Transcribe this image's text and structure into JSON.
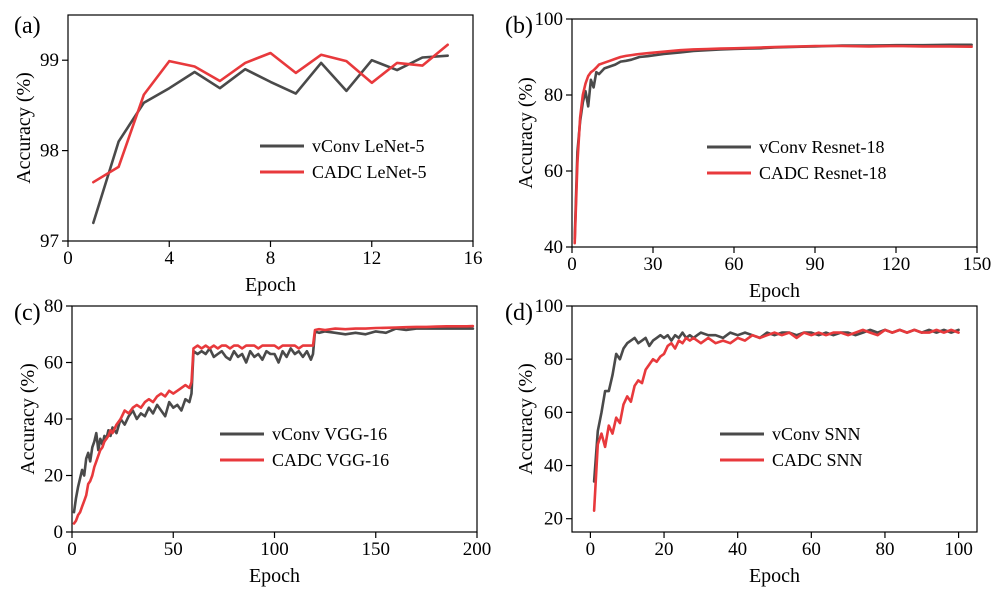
{
  "colors": {
    "vconv": "#4a4a4a",
    "cadc": "#e8393c"
  },
  "chart_data": [
    {
      "type": "line",
      "panel_label": "(a)",
      "xlabel": "Epoch",
      "ylabel": "Accuracy (%)",
      "xlim": [
        0,
        16
      ],
      "ylim": [
        97,
        99.5
      ],
      "xticks": [
        0,
        4,
        8,
        12,
        16
      ],
      "yticks": [
        97,
        98,
        99
      ],
      "legend_position": "center-right",
      "series": [
        {
          "name": "vConv LeNet-5",
          "color_key": "vconv",
          "x": [
            1,
            2,
            3,
            4,
            5,
            6,
            7,
            8,
            9,
            10,
            11,
            12,
            13,
            14,
            15
          ],
          "y": [
            97.2,
            98.1,
            98.53,
            98.69,
            98.87,
            98.69,
            98.9,
            98.76,
            98.63,
            98.97,
            98.66,
            99.0,
            98.89,
            99.03,
            99.05
          ]
        },
        {
          "name": "CADC LeNet-5",
          "color_key": "cadc",
          "x": [
            1,
            2,
            3,
            4,
            5,
            6,
            7,
            8,
            9,
            10,
            11,
            12,
            13,
            14,
            15
          ],
          "y": [
            97.65,
            97.82,
            98.62,
            98.99,
            98.93,
            98.77,
            98.97,
            99.08,
            98.86,
            99.06,
            98.99,
            98.75,
            98.97,
            98.94,
            99.17
          ]
        }
      ]
    },
    {
      "type": "line",
      "panel_label": "(b)",
      "xlabel": "Epoch",
      "ylabel": "Accuracy (%)",
      "xlim": [
        0,
        150
      ],
      "ylim": [
        40,
        100
      ],
      "xticks": [
        0,
        30,
        60,
        90,
        120,
        150
      ],
      "yticks": [
        40,
        60,
        80,
        100
      ],
      "legend_position": "center-right",
      "series": [
        {
          "name": "vConv Resnet-18",
          "color_key": "vconv",
          "x": [
            1,
            2,
            3,
            4,
            5,
            6,
            7,
            8,
            9,
            10,
            12,
            14,
            16,
            18,
            20,
            22,
            25,
            28,
            31,
            34,
            37,
            40,
            45,
            50,
            55,
            60,
            65,
            70,
            75,
            80,
            85,
            90,
            95,
            100,
            110,
            120,
            130,
            140,
            148
          ],
          "y": [
            42,
            65,
            73,
            78,
            81,
            77,
            84,
            82,
            86,
            85.5,
            87,
            87.5,
            88,
            88.8,
            89,
            89.3,
            90,
            90.2,
            90.5,
            90.8,
            91,
            91.2,
            91.6,
            91.8,
            92,
            92.1,
            92.2,
            92.3,
            92.5,
            92.6,
            92.7,
            92.8,
            92.9,
            93,
            93,
            93.1,
            93.1,
            93.2,
            93.2
          ]
        },
        {
          "name": "CADC Resnet-18",
          "color_key": "cadc",
          "x": [
            1,
            2,
            3,
            4,
            5,
            6,
            7,
            8,
            9,
            10,
            12,
            14,
            16,
            18,
            20,
            22,
            25,
            28,
            31,
            34,
            37,
            40,
            45,
            50,
            55,
            60,
            65,
            70,
            75,
            80,
            85,
            90,
            95,
            100,
            110,
            120,
            130,
            140,
            148
          ],
          "y": [
            41,
            62,
            74,
            80,
            83,
            85,
            86,
            86.5,
            87.2,
            88,
            88.5,
            89,
            89.5,
            90,
            90.3,
            90.5,
            90.8,
            91,
            91.2,
            91.4,
            91.6,
            91.8,
            92,
            92.1,
            92.2,
            92.3,
            92.4,
            92.5,
            92.6,
            92.7,
            92.8,
            92.9,
            92.9,
            92.9,
            92.8,
            92.9,
            92.8,
            92.8,
            92.7
          ]
        }
      ]
    },
    {
      "type": "line",
      "panel_label": "(c)",
      "xlabel": "Epoch",
      "ylabel": "Accuracy (%)",
      "xlim": [
        0,
        200
      ],
      "ylim": [
        0,
        80
      ],
      "xticks": [
        0,
        50,
        100,
        150,
        200
      ],
      "yticks": [
        0,
        20,
        40,
        60,
        80
      ],
      "legend_position": "bottom-right",
      "series": [
        {
          "name": "vConv VGG-16",
          "color_key": "vconv",
          "x": [
            1,
            2,
            3,
            4,
            5,
            6,
            7,
            8,
            9,
            10,
            11,
            12,
            13,
            14,
            15,
            16,
            17,
            18,
            19,
            20,
            22,
            24,
            26,
            28,
            30,
            32,
            34,
            36,
            38,
            40,
            42,
            44,
            46,
            48,
            50,
            52,
            54,
            56,
            58,
            59,
            60,
            62,
            64,
            66,
            68,
            70,
            72,
            74,
            76,
            78,
            80,
            82,
            84,
            86,
            88,
            90,
            92,
            94,
            96,
            98,
            100,
            102,
            104,
            106,
            108,
            110,
            112,
            114,
            116,
            118,
            119,
            120,
            122,
            125,
            130,
            135,
            140,
            145,
            150,
            155,
            160,
            165,
            170,
            175,
            180,
            185,
            190,
            195,
            198
          ],
          "y": [
            7,
            12,
            16,
            19,
            22,
            20,
            26,
            28,
            25,
            30,
            32,
            35,
            29,
            33,
            31,
            34,
            33,
            36,
            34,
            37,
            35,
            40,
            38,
            41,
            43,
            40,
            42,
            41,
            44,
            42,
            45,
            43,
            41,
            46,
            44,
            45,
            43,
            47,
            46,
            49,
            64,
            63,
            64,
            63,
            65,
            62,
            63,
            64,
            62,
            61,
            64,
            62,
            63,
            60,
            64,
            62,
            63,
            61,
            64,
            63,
            63,
            60,
            64,
            62,
            65,
            63,
            64,
            62,
            64,
            61,
            63,
            71,
            70.5,
            71,
            70.5,
            70,
            70.5,
            70,
            71,
            70.5,
            72,
            71.5,
            72,
            72,
            72,
            72,
            72,
            72,
            72
          ]
        },
        {
          "name": "CADC VGG-16",
          "color_key": "cadc",
          "x": [
            1,
            2,
            3,
            4,
            5,
            6,
            7,
            8,
            9,
            10,
            11,
            12,
            13,
            14,
            15,
            16,
            17,
            18,
            19,
            20,
            22,
            24,
            26,
            28,
            30,
            32,
            34,
            36,
            38,
            40,
            42,
            44,
            46,
            48,
            50,
            52,
            54,
            56,
            58,
            59,
            60,
            62,
            64,
            66,
            68,
            70,
            72,
            74,
            76,
            78,
            80,
            82,
            84,
            86,
            88,
            90,
            92,
            94,
            96,
            98,
            100,
            102,
            104,
            106,
            108,
            110,
            112,
            114,
            116,
            118,
            119,
            120,
            122,
            125,
            130,
            135,
            140,
            145,
            150,
            155,
            160,
            165,
            170,
            175,
            180,
            185,
            190,
            195,
            198
          ],
          "y": [
            3,
            4,
            6,
            7,
            9,
            11,
            13,
            17,
            18,
            20,
            23,
            25,
            27,
            29,
            30,
            32,
            33,
            34,
            36,
            35,
            38,
            40,
            43,
            42,
            44,
            45,
            44,
            46,
            47,
            46,
            48,
            49,
            48,
            50,
            49,
            50,
            51,
            52,
            51,
            53,
            65,
            66,
            65,
            66,
            65,
            66,
            65,
            66,
            66,
            65,
            66,
            66,
            65,
            66,
            66,
            66,
            65,
            66,
            66,
            66,
            66,
            65,
            66,
            66,
            66,
            66,
            65,
            66,
            66,
            66,
            66,
            71.5,
            71.8,
            71.5,
            72,
            71.8,
            72,
            72,
            72.2,
            72.3,
            72.4,
            72.5,
            72.6,
            72.6,
            72.7,
            72.8,
            72.8,
            72.8,
            72.9
          ]
        }
      ]
    },
    {
      "type": "line",
      "panel_label": "(d)",
      "xlabel": "Epoch",
      "ylabel": "Accuracy (%)",
      "xlim": [
        -5,
        105
      ],
      "ylim": [
        15,
        100
      ],
      "xticks": [
        0,
        20,
        40,
        60,
        80,
        100
      ],
      "yticks": [
        20,
        40,
        60,
        80,
        100
      ],
      "legend_position": "bottom-right",
      "series": [
        {
          "name": "vConv SNN",
          "color_key": "vconv",
          "x": [
            1,
            2,
            3,
            4,
            5,
            6,
            7,
            8,
            9,
            10,
            11,
            12,
            13,
            14,
            15,
            16,
            17,
            18,
            19,
            20,
            21,
            22,
            23,
            24,
            25,
            26,
            27,
            28,
            29,
            30,
            32,
            34,
            36,
            38,
            40,
            42,
            44,
            46,
            48,
            50,
            52,
            54,
            56,
            58,
            60,
            62,
            64,
            66,
            68,
            70,
            72,
            74,
            76,
            78,
            80,
            82,
            84,
            86,
            88,
            90,
            92,
            94,
            96,
            98,
            100
          ],
          "y": [
            34,
            53,
            60,
            68,
            68,
            74,
            82,
            80,
            84,
            86,
            87,
            88,
            86,
            87,
            88,
            85,
            87,
            88,
            89,
            88,
            89,
            87,
            89,
            88,
            90,
            88,
            89,
            88,
            89,
            90,
            89,
            89,
            88,
            90,
            89,
            90,
            89,
            88,
            90,
            89,
            90,
            90,
            89,
            90,
            90,
            89,
            90,
            89,
            90,
            90,
            89,
            90,
            91,
            90,
            91,
            90,
            91,
            90,
            91,
            90,
            91,
            90,
            91,
            90,
            91
          ]
        },
        {
          "name": "CADC SNN",
          "color_key": "cadc",
          "x": [
            1,
            2,
            3,
            4,
            5,
            6,
            7,
            8,
            9,
            10,
            11,
            12,
            13,
            14,
            15,
            16,
            17,
            18,
            19,
            20,
            21,
            22,
            23,
            24,
            25,
            26,
            27,
            28,
            29,
            30,
            32,
            34,
            36,
            38,
            40,
            42,
            44,
            46,
            48,
            50,
            52,
            54,
            56,
            58,
            60,
            62,
            64,
            66,
            68,
            70,
            72,
            74,
            76,
            78,
            80,
            82,
            84,
            86,
            88,
            90,
            92,
            94,
            96,
            98,
            100
          ],
          "y": [
            23,
            48,
            52,
            47,
            55,
            52,
            58,
            56,
            63,
            66,
            64,
            70,
            72,
            71,
            76,
            78,
            80,
            79,
            81,
            82,
            85,
            86,
            84,
            87,
            86,
            88,
            87,
            88,
            87,
            86,
            88,
            86,
            87,
            86,
            88,
            87,
            89,
            88,
            89,
            90,
            89,
            90,
            88,
            90,
            89,
            90,
            89,
            90,
            90,
            89,
            90,
            91,
            90,
            89,
            91,
            90,
            91,
            90,
            91,
            90,
            90,
            91,
            90,
            91,
            90
          ]
        }
      ]
    }
  ]
}
